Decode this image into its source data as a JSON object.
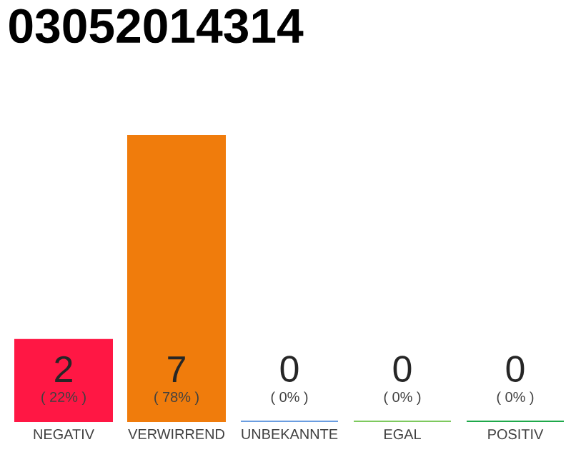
{
  "chart_data": {
    "type": "bar",
    "title": "03052014314",
    "categories": [
      "NEGATIV",
      "VERWIRREND",
      "UNBEKANNTE",
      "EGAL",
      "POSITIV"
    ],
    "values": [
      2,
      7,
      0,
      0,
      0
    ],
    "colors": [
      "#ff1744",
      "#f07c0c",
      "#6a9de0",
      "#7dc95e",
      "#1ea84a"
    ],
    "ylim": [
      0,
      7
    ],
    "data_labels": true,
    "annotations": [
      "( 22% )",
      "( 78% )",
      "( 0% )",
      "( 0% )",
      "( 0% )"
    ]
  }
}
